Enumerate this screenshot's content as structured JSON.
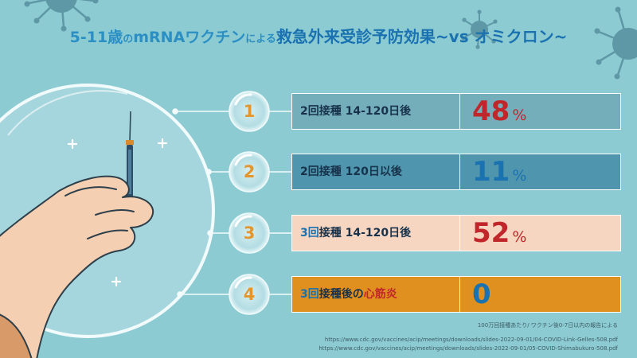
{
  "title": {
    "lead": "5-11歳",
    "particle1": "の",
    "vaccine": "mRNAワクチン",
    "particle2": "による",
    "main": "救急外来受診予防効果",
    "suffix": "~vs オミクロン~"
  },
  "rows": [
    {
      "number": "1",
      "label_prefix": "",
      "label_prefix_color": "#17324a",
      "label": "2回接種 14-120日後",
      "label_color": "#17324a",
      "label_highlight": "",
      "label_highlight_color": "#c0262a",
      "value": "48",
      "unit": "%",
      "value_color": "#c0262a",
      "fill": "#74aebb"
    },
    {
      "number": "2",
      "label_prefix": "",
      "label_prefix_color": "#17324a",
      "label": "2回接種 120日以後",
      "label_color": "#17324a",
      "label_highlight": "",
      "label_highlight_color": "#c0262a",
      "value": "11",
      "unit": "%",
      "value_color": "#1b72b0",
      "fill": "#4f95ae"
    },
    {
      "number": "3",
      "label_prefix": "3回",
      "label_prefix_color": "#1b72b0",
      "label": "接種 14-120日後",
      "label_color": "#17324a",
      "label_highlight": "",
      "label_highlight_color": "#c0262a",
      "value": "52",
      "unit": "%",
      "value_color": "#c0262a",
      "fill": "#f6d5c1"
    },
    {
      "number": "4",
      "label_prefix": "3回",
      "label_prefix_color": "#1b72b0",
      "label": "接種後の",
      "label_color": "#17324a",
      "label_highlight": "心筋炎",
      "label_highlight_color": "#c0262a",
      "value": "0",
      "unit": "",
      "value_color": "#1b72b0",
      "fill": "#e0901f"
    }
  ],
  "footnote": "100万回接種あたり/ ワクチン後0-7日以内の報告による",
  "sources": [
    "https://www.cdc.gov/vaccines/acip/meetings/downloads/slides-2022-09-01/04-COVID-Link-Gelles-508.pdf",
    "https://www.cdc.gov/vaccines/acip/meetings/downloads/slides-2022-09-01/05-COVID-Shimabukuro-508.pdf"
  ],
  "colors": {
    "background": "#8ccbd2",
    "title_blue": "#2b8fc4",
    "number_orange": "#e3962e",
    "value_red": "#c0262a",
    "value_blue": "#1b72b0"
  }
}
